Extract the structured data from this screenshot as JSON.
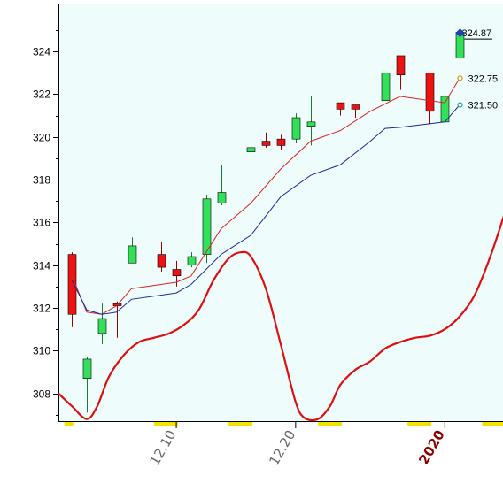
{
  "chart_data": {
    "type": "candlestick",
    "ylim": [
      306.7,
      326.2
    ],
    "y_ticks": [
      308,
      310,
      312,
      314,
      316,
      318,
      320,
      322,
      324
    ],
    "x_ticks": [
      {
        "label": "12.10",
        "at": 7,
        "year": false
      },
      {
        "label": "12.20",
        "at": 15,
        "year": false
      },
      {
        "label": "2020",
        "at": 25,
        "year": true
      }
    ],
    "slot_range": [
      -0.9,
      28.9
    ],
    "candles": [
      {
        "i": 0,
        "open": 314.5,
        "close": 311.7,
        "high": 314.6,
        "low": 311.1
      },
      {
        "i": 1,
        "open": 308.7,
        "close": 309.6,
        "high": 309.7,
        "low": 307.1
      },
      {
        "i": 2,
        "open": 310.8,
        "close": 311.5,
        "high": 312.2,
        "low": 310.3
      },
      {
        "i": 3,
        "open": 312.2,
        "close": 312.1,
        "high": 312.3,
        "low": 310.6
      },
      {
        "i": 4,
        "open": 314.1,
        "close": 314.9,
        "high": 315.3,
        "low": 314.1
      },
      {
        "i": 6,
        "open": 314.5,
        "close": 313.9,
        "high": 315.1,
        "low": 313.7
      },
      {
        "i": 7,
        "open": 313.8,
        "close": 313.5,
        "high": 314.2,
        "low": 313.0
      },
      {
        "i": 8,
        "open": 314.0,
        "close": 314.4,
        "high": 314.6,
        "low": 313.9
      },
      {
        "i": 9,
        "open": 314.5,
        "close": 317.1,
        "high": 317.3,
        "low": 314.1
      },
      {
        "i": 10,
        "open": 316.9,
        "close": 317.4,
        "high": 318.7,
        "low": 316.8
      },
      {
        "i": 12,
        "open": 319.3,
        "close": 319.5,
        "high": 320.1,
        "low": 317.3
      },
      {
        "i": 13,
        "open": 319.8,
        "close": 319.6,
        "high": 320.2,
        "low": 319.5
      },
      {
        "i": 14,
        "open": 319.9,
        "close": 319.6,
        "high": 320.1,
        "low": 319.4
      },
      {
        "i": 15,
        "open": 319.9,
        "close": 320.9,
        "high": 321.1,
        "low": 319.7
      },
      {
        "i": 16,
        "open": 320.5,
        "close": 320.7,
        "high": 321.9,
        "low": 319.6
      },
      {
        "i": 18,
        "open": 321.6,
        "close": 321.3,
        "high": 321.6,
        "low": 321.0
      },
      {
        "i": 19,
        "open": 321.5,
        "close": 321.3,
        "high": 321.5,
        "low": 320.9
      },
      {
        "i": 21,
        "open": 321.7,
        "close": 323.0,
        "high": 323.0,
        "low": 321.7
      },
      {
        "i": 22,
        "open": 323.8,
        "close": 322.9,
        "high": 323.8,
        "low": 322.2
      },
      {
        "i": 24,
        "open": 323.0,
        "close": 321.2,
        "high": 323.0,
        "low": 320.6
      },
      {
        "i": 25,
        "open": 320.7,
        "close": 321.9,
        "high": 322.0,
        "low": 320.2
      },
      {
        "i": 26,
        "open": 323.7,
        "close": 324.9,
        "high": 325.0,
        "low": 323.6
      }
    ],
    "ma_red": [
      [
        0,
        313.5
      ],
      [
        1,
        311.8
      ],
      [
        2,
        311.7
      ],
      [
        3,
        312.1
      ],
      [
        4,
        312.9
      ],
      [
        7,
        313.2
      ],
      [
        8,
        313.5
      ],
      [
        10,
        315.7
      ],
      [
        12,
        316.9
      ],
      [
        14,
        318.5
      ],
      [
        16,
        319.8
      ],
      [
        18,
        320.3
      ],
      [
        20,
        321.2
      ],
      [
        22,
        321.9
      ],
      [
        25,
        321.6
      ],
      [
        26,
        322.75
      ]
    ],
    "ma_blue": [
      [
        0,
        313.3
      ],
      [
        1,
        311.9
      ],
      [
        2,
        311.7
      ],
      [
        3,
        311.8
      ],
      [
        4,
        312.4
      ],
      [
        7,
        312.7
      ],
      [
        8,
        313.1
      ],
      [
        10,
        314.5
      ],
      [
        12,
        315.4
      ],
      [
        14,
        317.2
      ],
      [
        16,
        318.2
      ],
      [
        18,
        318.7
      ],
      [
        20,
        319.8
      ],
      [
        21,
        320.4
      ],
      [
        22,
        320.45
      ],
      [
        25,
        320.7
      ],
      [
        26,
        321.5
      ]
    ],
    "oscillator": [
      [
        -0.9,
        308.0
      ],
      [
        0,
        307.4
      ],
      [
        1,
        306.8
      ],
      [
        1.7,
        307.4
      ],
      [
        2.5,
        308.8
      ],
      [
        3.5,
        309.8
      ],
      [
        4.5,
        310.4
      ],
      [
        5.5,
        310.6
      ],
      [
        6.5,
        310.8
      ],
      [
        7.5,
        311.2
      ],
      [
        8.5,
        311.9
      ],
      [
        9.5,
        313.3
      ],
      [
        10.5,
        314.3
      ],
      [
        11.3,
        314.6
      ],
      [
        12,
        314.4
      ],
      [
        13,
        312.9
      ],
      [
        14,
        310.3
      ],
      [
        15,
        307.6
      ],
      [
        15.6,
        306.85
      ],
      [
        16.5,
        306.8
      ],
      [
        17.3,
        307.4
      ],
      [
        18,
        308.4
      ],
      [
        19,
        309.1
      ],
      [
        20,
        309.5
      ],
      [
        21,
        310.1
      ],
      [
        22,
        310.4
      ],
      [
        23,
        310.6
      ],
      [
        24,
        310.7
      ],
      [
        25,
        311.0
      ],
      [
        26,
        311.6
      ],
      [
        27,
        312.6
      ],
      [
        28,
        314.3
      ],
      [
        29,
        316.4
      ],
      [
        30,
        318.7
      ],
      [
        31,
        320.7
      ],
      [
        31.5,
        321.5
      ]
    ],
    "price_labels": [
      {
        "value": 324.87,
        "text": "324.87",
        "color": "#1f3fbf",
        "marker": "diamond"
      },
      {
        "value": 322.75,
        "text": "322.75",
        "color": "#c4a000",
        "marker": "dot"
      },
      {
        "value": 321.5,
        "text": "321.50",
        "color": "#20a0a0",
        "marker": "dot"
      }
    ],
    "cursor_slot": 26,
    "highlight_bands": [
      [
        -0.5,
        0.1
      ],
      [
        5.5,
        7.1
      ],
      [
        10.5,
        12.1
      ],
      [
        16.5,
        18.1
      ],
      [
        22.5,
        24.1
      ],
      [
        27.5,
        28.9
      ]
    ],
    "colors": {
      "plot_bg": "#effcfc",
      "up": "#33e05a",
      "down": "#ee1111",
      "ma_red": "#dd2222",
      "ma_blue": "#1a2a99",
      "oscillator": "#dd0f0f",
      "band": "#f2e400",
      "cursor": "#208080"
    }
  }
}
